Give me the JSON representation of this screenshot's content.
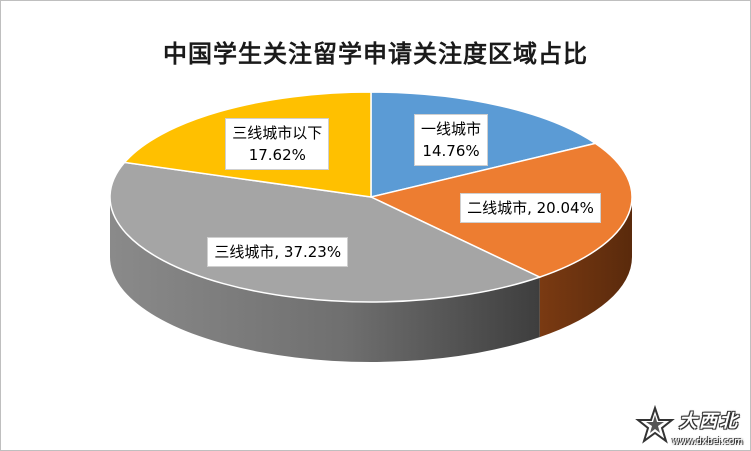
{
  "chart_data": {
    "type": "pie",
    "title": "中国学生关注留学申请关注度区域占比",
    "slices": [
      {
        "name": "一线城市",
        "value": 14.76,
        "label_line1": "一线城市",
        "label_line2": "14.76%",
        "color": "#5b9bd5"
      },
      {
        "name": "二线城市",
        "value": 20.04,
        "label_line1": "二线城市, 20.04%",
        "label_line2": "",
        "color": "#ed7d31"
      },
      {
        "name": "三线城市",
        "value": 37.23,
        "label_line1": "三线城市, 37.23%",
        "label_line2": "",
        "color": "#a5a5a5"
      },
      {
        "name": "三线城市以下",
        "value": 17.62,
        "label_line1": "三线城市以下",
        "label_line2": "17.62%",
        "color": "#ffc000"
      }
    ],
    "start_angle_deg": 0,
    "direction": "clockwise",
    "style": "3d-pie",
    "legend": "none"
  },
  "watermark": {
    "brand_icon": "star-logo-icon",
    "text": "大西北",
    "url": "www.dxbei.com"
  }
}
